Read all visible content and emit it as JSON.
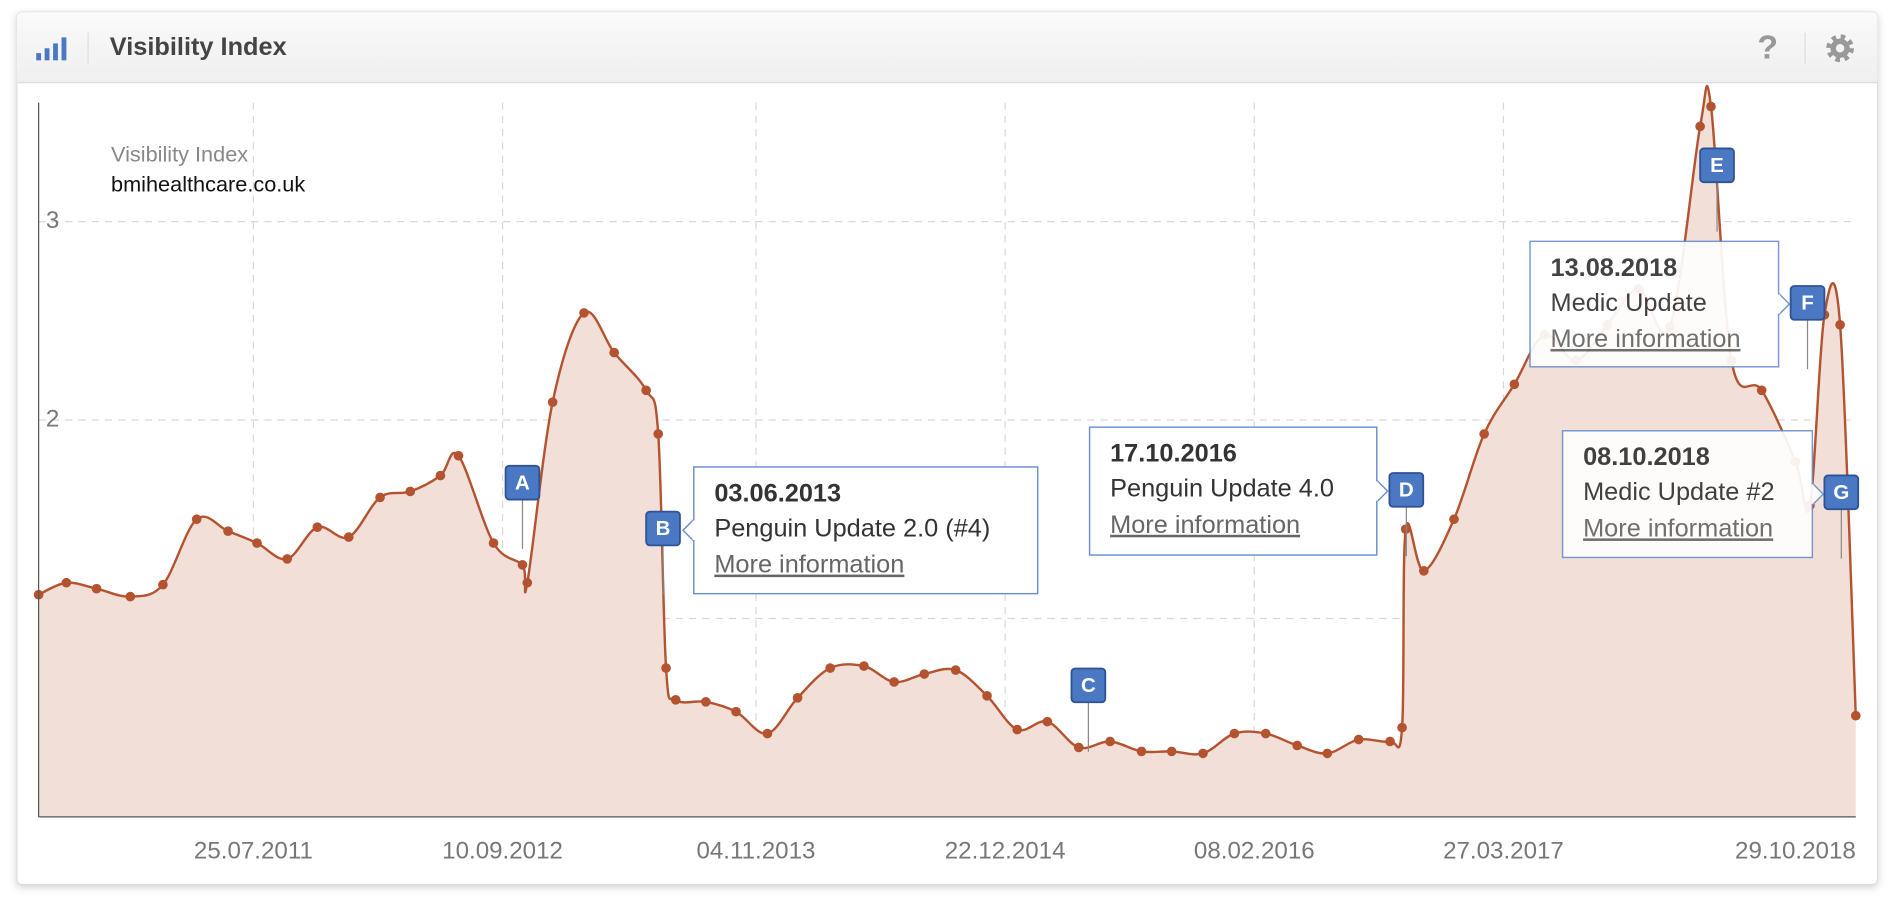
{
  "chart_data": {
    "type": "area",
    "title": "Visibility Index",
    "subtitle": "bmihealthcare.co.uk",
    "x": [
      "2010-08-03",
      "2010-09-18",
      "2010-11-07",
      "2011-01-02",
      "2011-02-25",
      "2011-04-22",
      "2011-06-13",
      "2011-07-31",
      "2011-09-19",
      "2011-11-08",
      "2011-12-30",
      "2012-02-20",
      "2012-04-10",
      "2012-05-30",
      "2012-06-29",
      "2012-08-26",
      "2012-10-13",
      "2012-10-21",
      "2012-12-02",
      "2013-01-23",
      "2013-03-14",
      "2013-05-06",
      "2013-05-26",
      "2013-06-08",
      "2013-06-24",
      "2013-08-13",
      "2013-10-02",
      "2013-11-23",
      "2014-01-12",
      "2014-03-07",
      "2014-05-02",
      "2014-06-21",
      "2014-08-10",
      "2014-10-01",
      "2014-11-22",
      "2015-01-11",
      "2015-03-02",
      "2015-04-23",
      "2015-06-14",
      "2015-08-05",
      "2015-09-24",
      "2015-11-15",
      "2016-01-06",
      "2016-02-27",
      "2016-04-19",
      "2016-06-08",
      "2016-07-30",
      "2016-09-20",
      "2016-10-10",
      "2016-10-16",
      "2016-11-15",
      "2017-01-04",
      "2017-02-23",
      "2017-04-14",
      "2017-06-03",
      "2017-07-25",
      "2017-09-15",
      "2017-11-06",
      "2017-12-28",
      "2018-02-16",
      "2018-03-06",
      "2018-04-09",
      "2018-05-29",
      "2018-07-24",
      "2018-08-17",
      "2018-09-10",
      "2018-10-06",
      "2018-11-01"
    ],
    "series": [
      {
        "name": "Visibility Index",
        "color": "#b4532f",
        "fill": "#f2dfd8",
        "values": [
          1.12,
          1.18,
          1.15,
          1.11,
          1.17,
          1.5,
          1.44,
          1.38,
          1.3,
          1.46,
          1.41,
          1.61,
          1.64,
          1.72,
          1.82,
          1.38,
          1.27,
          1.18,
          2.09,
          2.54,
          2.34,
          2.15,
          1.93,
          0.75,
          0.59,
          0.58,
          0.53,
          0.42,
          0.6,
          0.75,
          0.76,
          0.68,
          0.72,
          0.74,
          0.61,
          0.44,
          0.48,
          0.35,
          0.38,
          0.33,
          0.33,
          0.32,
          0.42,
          0.42,
          0.36,
          0.32,
          0.39,
          0.38,
          0.45,
          1.45,
          1.24,
          1.5,
          1.93,
          2.18,
          2.43,
          2.3,
          2.48,
          2.66,
          2.47,
          3.48,
          3.58,
          2.3,
          2.15,
          1.79,
          1.57,
          2.53,
          2.48,
          0.51
        ]
      }
    ],
    "xlim": [
      "2010-08-03",
      "2018-11-01"
    ],
    "xticks": [
      {
        "value": "2011-07-25",
        "label": "25.07.2011"
      },
      {
        "value": "2012-09-10",
        "label": "10.09.2012"
      },
      {
        "value": "2013-11-04",
        "label": "04.11.2013"
      },
      {
        "value": "2014-12-22",
        "label": "22.12.2014"
      },
      {
        "value": "2016-02-08",
        "label": "08.02.2016"
      },
      {
        "value": "2017-03-27",
        "label": "27.03.2017"
      },
      {
        "value": "2018-10-29",
        "label": "29.10.2018"
      }
    ],
    "ylim": [
      0,
      3.6
    ],
    "yticks": [
      0,
      1,
      2,
      3
    ],
    "grid": true,
    "events": [
      {
        "label": "A",
        "x": "2012-10-13"
      },
      {
        "label": "B",
        "x": "2013-06-03",
        "date": "03.06.2013",
        "title": "Penguin Update 2.0 (#4)",
        "link": "More information"
      },
      {
        "label": "C",
        "x": "2015-05-09"
      },
      {
        "label": "D",
        "x": "2016-10-17",
        "date": "17.10.2016",
        "title": "Penguin Update 4.0",
        "link": "More information"
      },
      {
        "label": "E",
        "x": "2018-03-16"
      },
      {
        "label": "F",
        "x": "2018-08-13",
        "date": "13.08.2018",
        "title": "Medic Update",
        "link": "More information"
      },
      {
        "label": "G",
        "x": "2018-10-08",
        "date": "08.10.2018",
        "title": "Medic Update #2",
        "link": "More information"
      }
    ]
  }
}
